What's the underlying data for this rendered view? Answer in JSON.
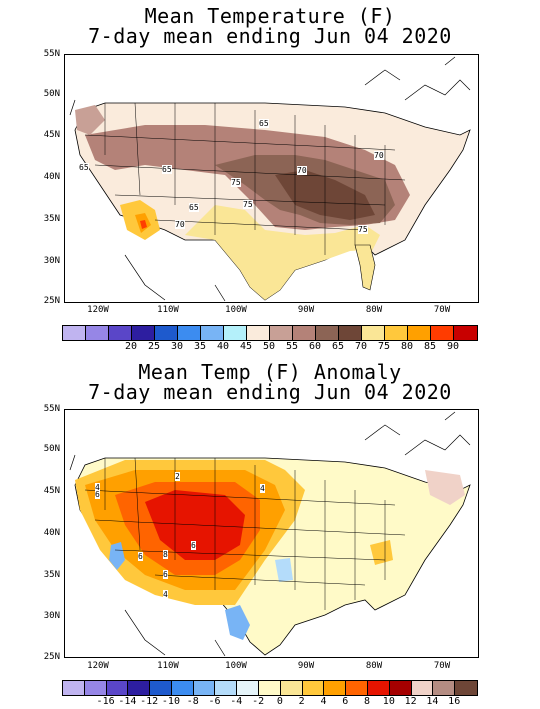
{
  "maps": [
    {
      "title_line1": "Mean Temperature (F)",
      "title_line2": "7-day mean ending Jun 04 2020",
      "lat_ticks": [
        "55N",
        "50N",
        "45N",
        "40N",
        "35N",
        "30N",
        "25N"
      ],
      "lon_ticks": [
        "120W",
        "110W",
        "100W",
        "90W",
        "80W",
        "70W"
      ],
      "contour_labels": [
        "65",
        "65",
        "65",
        "70",
        "70",
        "75",
        "75",
        "65",
        "70",
        "75"
      ],
      "colorbar_colors": [
        "#c0b4f0",
        "#9686e6",
        "#5a46c8",
        "#2d1ea0",
        "#1e5acd",
        "#3c8cf0",
        "#78b4f5",
        "#b4f0fa",
        "#faebdc",
        "#c8a096",
        "#b48278",
        "#8c6455",
        "#6e4637",
        "#fae696",
        "#ffc83c",
        "#ffa000",
        "#ff3c00",
        "#c80000"
      ],
      "colorbar_labels": [
        "20",
        "25",
        "30",
        "35",
        "40",
        "45",
        "50",
        "55",
        "60",
        "65",
        "70",
        "75",
        "80",
        "85",
        "90"
      ]
    },
    {
      "title_line1": "Mean Temp (F) Anomaly",
      "title_line2": "7-day mean ending Jun 04 2020",
      "lat_ticks": [
        "55N",
        "50N",
        "45N",
        "40N",
        "35N",
        "30N",
        "25N"
      ],
      "lon_ticks": [
        "120W",
        "110W",
        "100W",
        "90W",
        "80W",
        "70W"
      ],
      "contour_labels": [
        "4",
        "6",
        "6",
        "8",
        "6",
        "6",
        "4",
        "4",
        "2"
      ],
      "colorbar_colors": [
        "#c0b4f0",
        "#9686e6",
        "#5a46c8",
        "#2d1ea0",
        "#1e5acd",
        "#3c8cf0",
        "#78b4f5",
        "#b4dcfa",
        "#e6f5fa",
        "#fffac8",
        "#fae696",
        "#ffc83c",
        "#ffa000",
        "#ff6400",
        "#e61400",
        "#a50000",
        "#f0d2c8",
        "#b48c82",
        "#6e4637"
      ],
      "colorbar_labels": [
        "-16",
        "-14",
        "-12",
        "-10",
        "-8",
        "-6",
        "-4",
        "-2",
        "0",
        "2",
        "4",
        "6",
        "8",
        "10",
        "12",
        "14",
        "16"
      ]
    }
  ]
}
